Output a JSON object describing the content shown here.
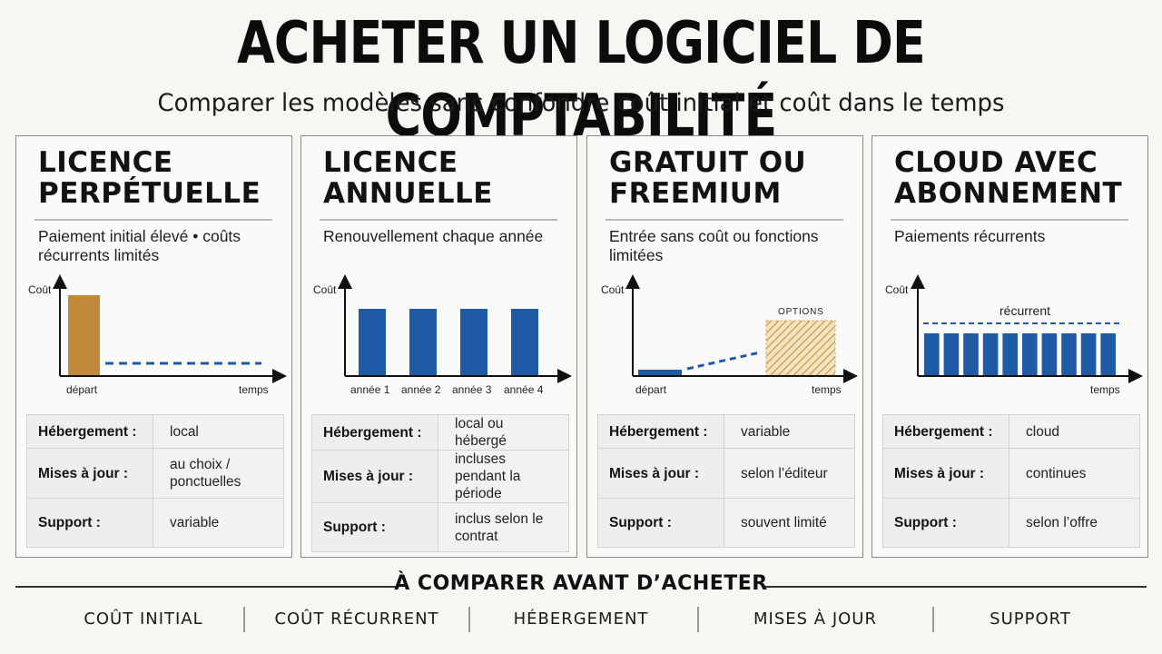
{
  "title": "ACHETER UN LOGICIEL DE COMPTABILITÉ",
  "subtitle": "Comparer les modèles sans confondre coût initial et coût dans le temps",
  "colors": {
    "gold": "#c08a3a",
    "blue": "#1f5aa6",
    "ink": "#111111"
  },
  "cards": [
    {
      "title_line1": "LICENCE",
      "title_line2": "PERPÉTUELLE",
      "description": "Paiement initial élevé • coûts récurrents limités",
      "chart": {
        "y_label": "Coût",
        "x_start": "départ",
        "x_end": "temps"
      },
      "rows": [
        {
          "key": "Hébergement :",
          "value": "local"
        },
        {
          "key": "Mises à jour :",
          "value": "au choix / ponctuelles"
        },
        {
          "key": "Support :",
          "value": "variable"
        }
      ]
    },
    {
      "title_line1": "LICENCE",
      "title_line2": "ANNUELLE",
      "description": "Renouvellement chaque année",
      "chart": {
        "y_label": "Coût",
        "categories": [
          "année 1",
          "année 2",
          "année 3",
          "année 4"
        ]
      },
      "rows": [
        {
          "key": "Hébergement :",
          "value": "local ou hébergé"
        },
        {
          "key": "Mises à jour :",
          "value": "incluses pendant la période"
        },
        {
          "key": "Support :",
          "value": "inclus selon le contrat"
        }
      ]
    },
    {
      "title_line1": "GRATUIT OU",
      "title_line2": "FREEMIUM",
      "description": "Entrée sans coût ou fonctions limitées",
      "chart": {
        "y_label": "Coût",
        "x_start": "départ",
        "x_end": "temps",
        "options_label": "OPTIONS"
      },
      "rows": [
        {
          "key": "Hébergement :",
          "value": "variable"
        },
        {
          "key": "Mises à jour :",
          "value": "selon l’éditeur"
        },
        {
          "key": "Support :",
          "value": "souvent limité"
        }
      ]
    },
    {
      "title_line1": "CLOUD AVEC",
      "title_line2": "ABONNEMENT",
      "description": "Paiements récurrents",
      "chart": {
        "y_label": "Coût",
        "x_end": "temps",
        "recurring_label": "récurrent",
        "bar_count": 10
      },
      "rows": [
        {
          "key": "Hébergement :",
          "value": "cloud"
        },
        {
          "key": "Mises à jour :",
          "value": "continues"
        },
        {
          "key": "Support :",
          "value": "selon l’offre"
        }
      ]
    }
  ],
  "bottom": {
    "title": "À COMPARER AVANT D’ACHETER",
    "criteria": [
      "COÛT INITIAL",
      "COÛT RÉCURRENT",
      "HÉBERGEMENT",
      "MISES À JOUR",
      "SUPPORT"
    ]
  }
}
